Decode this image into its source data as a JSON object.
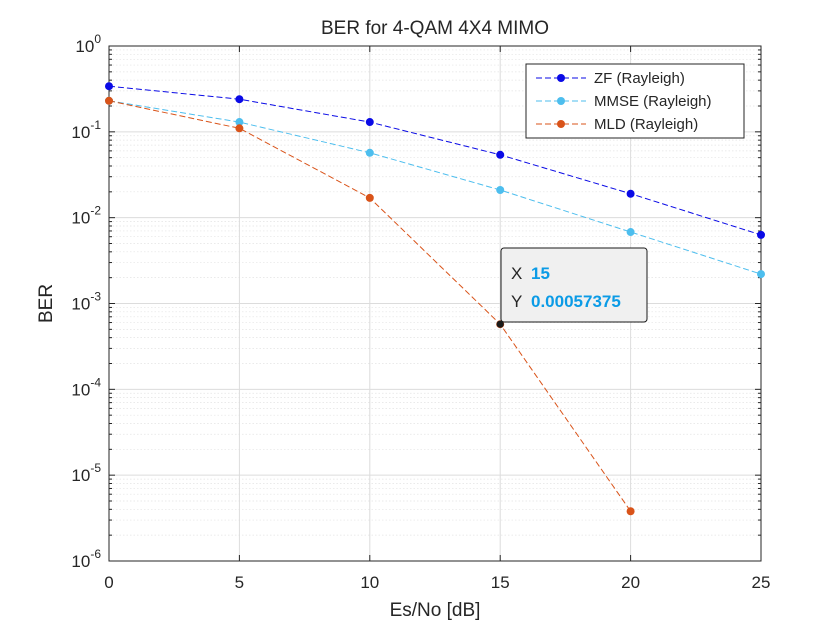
{
  "chart_data": {
    "type": "line",
    "title": "BER for 4-QAM 4X4 MIMO",
    "xlabel": "Es/No [dB]",
    "ylabel": "BER",
    "x": [
      0,
      5,
      10,
      15,
      20,
      25
    ],
    "xlim": [
      0,
      25
    ],
    "ylim": [
      1e-06,
      1
    ],
    "yscale": "log",
    "grid": true,
    "minor_grid": true,
    "legend_position": "top-right",
    "x_tick_labels": [
      "0",
      "5",
      "10",
      "15",
      "20",
      "25"
    ],
    "y_tick_labels": [
      {
        "base": "10",
        "exp": "0",
        "value": 1
      },
      {
        "base": "10",
        "exp": "-1",
        "value": 0.1
      },
      {
        "base": "10",
        "exp": "-2",
        "value": 0.01
      },
      {
        "base": "10",
        "exp": "-3",
        "value": 0.001
      },
      {
        "base": "10",
        "exp": "-4",
        "value": 0.0001
      },
      {
        "base": "10",
        "exp": "-5",
        "value": 1e-05
      },
      {
        "base": "10",
        "exp": "-6",
        "value": 1e-06
      }
    ],
    "series": [
      {
        "name": "ZF (Rayleigh)",
        "color": "#0a0ae6",
        "style": "dashed-marker",
        "x": [
          0,
          5,
          10,
          15,
          20,
          25
        ],
        "values": [
          0.34,
          0.24,
          0.13,
          0.054,
          0.019,
          0.0063
        ]
      },
      {
        "name": "MMSE (Rayleigh)",
        "color": "#4dbeee",
        "style": "dashed-marker",
        "x": [
          0,
          5,
          10,
          15,
          20,
          25
        ],
        "values": [
          0.23,
          0.13,
          0.057,
          0.021,
          0.0068,
          0.0022
        ]
      },
      {
        "name": "MLD (Rayleigh)",
        "color": "#d95319",
        "style": "dashed-marker",
        "x": [
          0,
          5,
          10,
          15,
          20
        ],
        "values": [
          0.23,
          0.11,
          0.017,
          0.00057375,
          3.8e-06
        ]
      }
    ],
    "datatip": {
      "x_key": "X",
      "x_value": "15",
      "y_key": "Y",
      "y_value": "0.00057375",
      "point": {
        "x": 15,
        "y": 0.00057375
      }
    }
  }
}
